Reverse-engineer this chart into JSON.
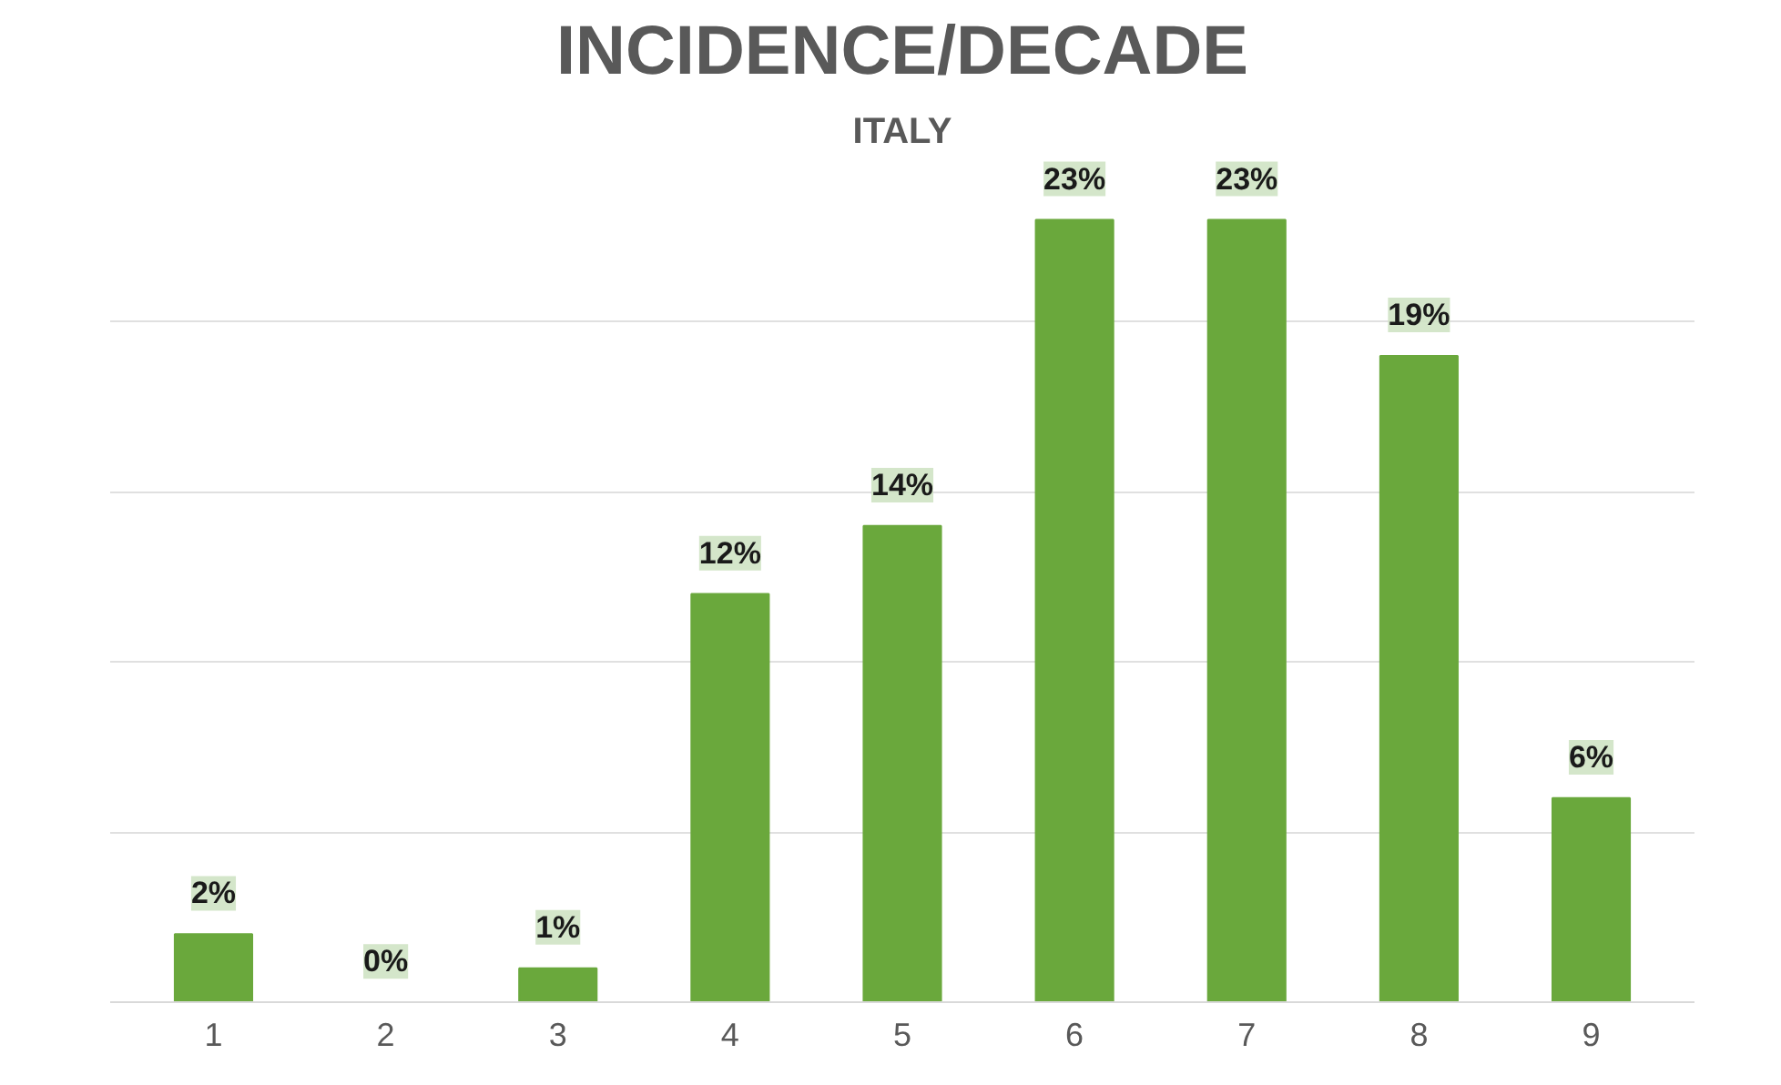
{
  "chart_data": {
    "type": "bar",
    "title": "INCIDENCE/DECADE",
    "subtitle": "ITALY",
    "categories": [
      "1",
      "2",
      "3",
      "4",
      "5",
      "6",
      "7",
      "8",
      "9"
    ],
    "values": [
      2,
      0,
      1,
      12,
      14,
      23,
      23,
      19,
      6
    ],
    "value_labels": [
      "2%",
      "0%",
      "1%",
      "12%",
      "14%",
      "23%",
      "23%",
      "19%",
      "6%"
    ],
    "color": "#6aa83c",
    "grid": "y",
    "tick_labels": "x"
  }
}
